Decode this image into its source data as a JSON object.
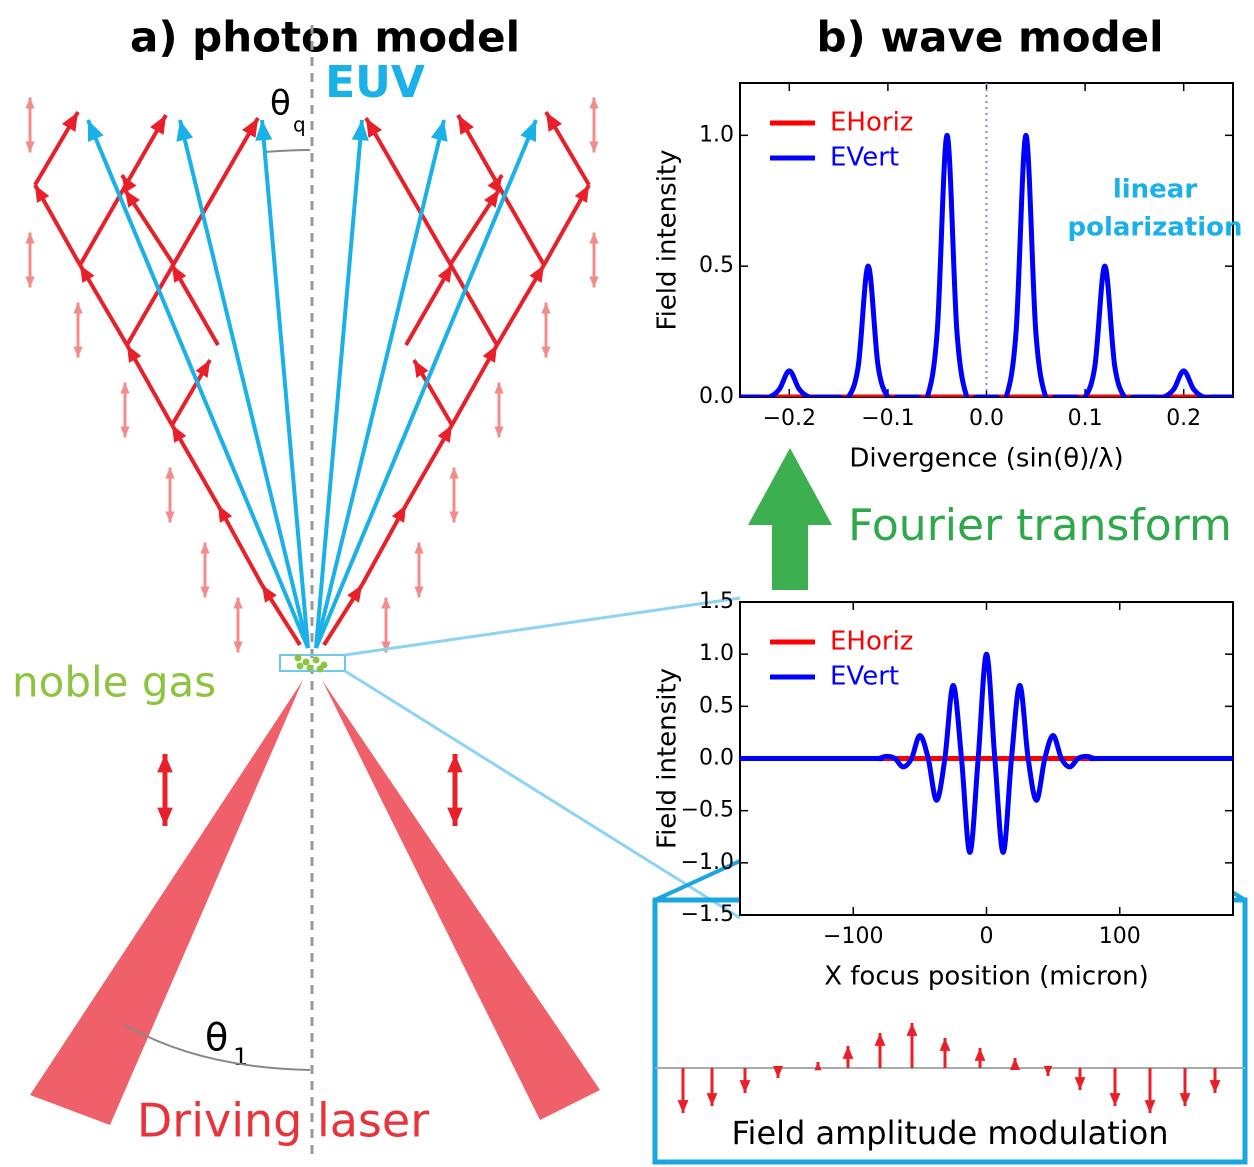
{
  "diagram": {
    "title_a": "a) photon model",
    "title_b": "b) wave model",
    "euv": "EUV",
    "theta_q": {
      "symbol": "θ",
      "subscript": "q"
    },
    "theta_1": {
      "symbol": "θ",
      "subscript": "1"
    },
    "noble_gas": "noble gas",
    "driving_laser": "Driving laser",
    "fourier": "Fourier transform",
    "modulation": "Field amplitude modulation"
  },
  "chart_data": [
    {
      "type": "line",
      "x_label": "Divergence (sin(θ)/λ)",
      "y_label": "Field intensity",
      "annotations": [
        "linear",
        "polarization"
      ],
      "x": [
        -0.25,
        -0.24,
        -0.23,
        -0.22,
        -0.21,
        -0.2,
        -0.19,
        -0.18,
        -0.17,
        -0.16,
        -0.15,
        -0.14,
        -0.13,
        -0.12,
        -0.11,
        -0.1,
        -0.09,
        -0.08,
        -0.07,
        -0.06,
        -0.05,
        -0.04,
        -0.03,
        -0.02,
        -0.01,
        0,
        0.01,
        0.02,
        0.03,
        0.04,
        0.05,
        0.06,
        0.07,
        0.08,
        0.09,
        0.1,
        0.11,
        0.12,
        0.13,
        0.14,
        0.15,
        0.16,
        0.17,
        0.18,
        0.19,
        0.2,
        0.21,
        0.22,
        0.23,
        0.24,
        0.25
      ],
      "series": [
        {
          "name": "EHoriz",
          "color": "#ff0000",
          "values": [
            0,
            0,
            0,
            0,
            0,
            0,
            0,
            0,
            0,
            0,
            0,
            0,
            0,
            0,
            0,
            0,
            0,
            0,
            0,
            0,
            0,
            0,
            0,
            0,
            0,
            0,
            0,
            0,
            0,
            0,
            0,
            0,
            0,
            0,
            0,
            0,
            0,
            0,
            0,
            0,
            0,
            0,
            0,
            0,
            0,
            0,
            0,
            0,
            0,
            0,
            0
          ]
        },
        {
          "name": "EVert",
          "color": "#0000ff",
          "values": [
            0,
            0,
            0,
            0,
            0.03,
            0.1,
            0.03,
            0,
            0,
            0,
            0,
            0,
            0.12,
            0.5,
            0.12,
            0,
            0,
            0,
            0,
            0,
            0.25,
            1,
            0.25,
            0,
            0,
            0,
            0,
            0,
            0.25,
            1,
            0.25,
            0,
            0,
            0,
            0,
            0,
            0.12,
            0.5,
            0.12,
            0,
            0,
            0,
            0,
            0,
            0.03,
            0.1,
            0.03,
            0,
            0,
            0,
            0
          ]
        }
      ],
      "xlim": [
        -0.25,
        0.25
      ],
      "xticks": [
        {
          "value": -0.2,
          "label": "−0.2"
        },
        {
          "value": -0.1,
          "label": "−0.1"
        },
        {
          "value": 0,
          "label": "0.0"
        },
        0.1,
        0.2
      ],
      "ylim": [
        0,
        1.2
      ],
      "yticks": [
        {
          "value": 0,
          "label": "0.0"
        },
        0.5,
        {
          "value": 1,
          "label": "1.0"
        }
      ]
    },
    {
      "type": "line",
      "x_label": "X focus position (micron)",
      "y_label": "Field intensity",
      "x": [
        -185,
        -87.5,
        -81.25,
        -75,
        -68.75,
        -62.5,
        -56.25,
        -50,
        -43.75,
        -37.5,
        -31.25,
        -25,
        -18.75,
        -12.5,
        -6.25,
        0,
        6.25,
        12.5,
        18.75,
        25,
        31.25,
        37.5,
        43.75,
        50,
        56.25,
        62.5,
        68.75,
        75,
        81.25,
        87.5,
        185
      ],
      "series": [
        {
          "name": "EHoriz",
          "color": "#ff0000",
          "values": [
            0,
            0,
            0,
            0,
            0,
            0,
            0,
            0,
            0,
            0,
            0,
            0,
            0,
            0,
            0,
            0,
            0,
            0,
            0,
            0,
            0,
            0,
            0,
            0,
            0,
            0,
            0,
            0,
            0,
            0,
            0
          ]
        },
        {
          "name": "EVert",
          "color": "#0000ff",
          "values": [
            0,
            0,
            0,
            0.02,
            0,
            -0.08,
            0,
            0.22,
            0,
            -0.4,
            0,
            0.7,
            0,
            -0.9,
            0,
            1,
            0,
            -0.9,
            0,
            0.7,
            0,
            -0.4,
            0,
            0.22,
            0,
            -0.08,
            0,
            0.02,
            0,
            0,
            0
          ]
        }
      ],
      "xlim": [
        -185,
        185
      ],
      "xticks": [
        {
          "value": -100,
          "label": "−100"
        },
        0,
        100
      ],
      "ylim": [
        -1.5,
        1.5
      ],
      "yticks": [
        {
          "value": -1.5,
          "label": "−1.5"
        },
        {
          "value": -1,
          "label": "−1.0"
        },
        {
          "value": -0.5,
          "label": "−0.5"
        },
        {
          "value": 0,
          "label": "0.0"
        },
        0.5,
        {
          "value": 1,
          "label": "1.0"
        },
        1.5
      ]
    }
  ]
}
